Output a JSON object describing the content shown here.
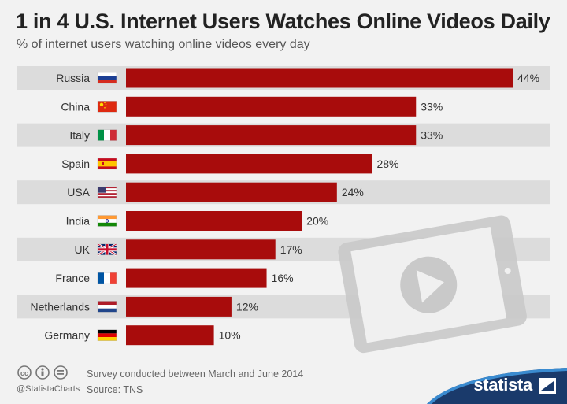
{
  "header": {
    "title": "1 in 4 U.S. Internet Users Watches Online Videos Daily",
    "subtitle": "% of internet users watching online videos every day"
  },
  "chart_data": {
    "type": "bar",
    "orientation": "horizontal",
    "categories": [
      "Russia",
      "China",
      "Italy",
      "Spain",
      "USA",
      "India",
      "UK",
      "France",
      "Netherlands",
      "Germany"
    ],
    "values": [
      44,
      33,
      33,
      28,
      24,
      20,
      17,
      16,
      12,
      10
    ],
    "value_labels": [
      "44%",
      "33%",
      "33%",
      "28%",
      "24%",
      "20%",
      "17%",
      "16%",
      "12%",
      "10%"
    ],
    "flag_icons": [
      "flag-russia-icon",
      "flag-china-icon",
      "flag-italy-icon",
      "flag-spain-icon",
      "flag-usa-icon",
      "flag-india-icon",
      "flag-uk-icon",
      "flag-france-icon",
      "flag-netherlands-icon",
      "flag-germany-icon"
    ],
    "title": "1 in 4 U.S. Internet Users Watches Online Videos Daily",
    "subtitle": "% of internet users watching online videos every day",
    "xlabel": "",
    "ylabel": "",
    "xlim": [
      0,
      44
    ],
    "grid": false,
    "bar_color": "#a80c0c",
    "band_color": "#dcdcdc"
  },
  "decoration": {
    "icon": "tablet-play-icon"
  },
  "footer": {
    "note1": "Survey conducted between March and June 2014",
    "note2": "Source: TNS",
    "handle": "@StatistaCharts",
    "license_icons": [
      "cc-icon",
      "by-icon",
      "nd-icon"
    ]
  },
  "brand": {
    "name": "statista",
    "color": "#1a3a6b",
    "accent": "#3a8bd0"
  }
}
